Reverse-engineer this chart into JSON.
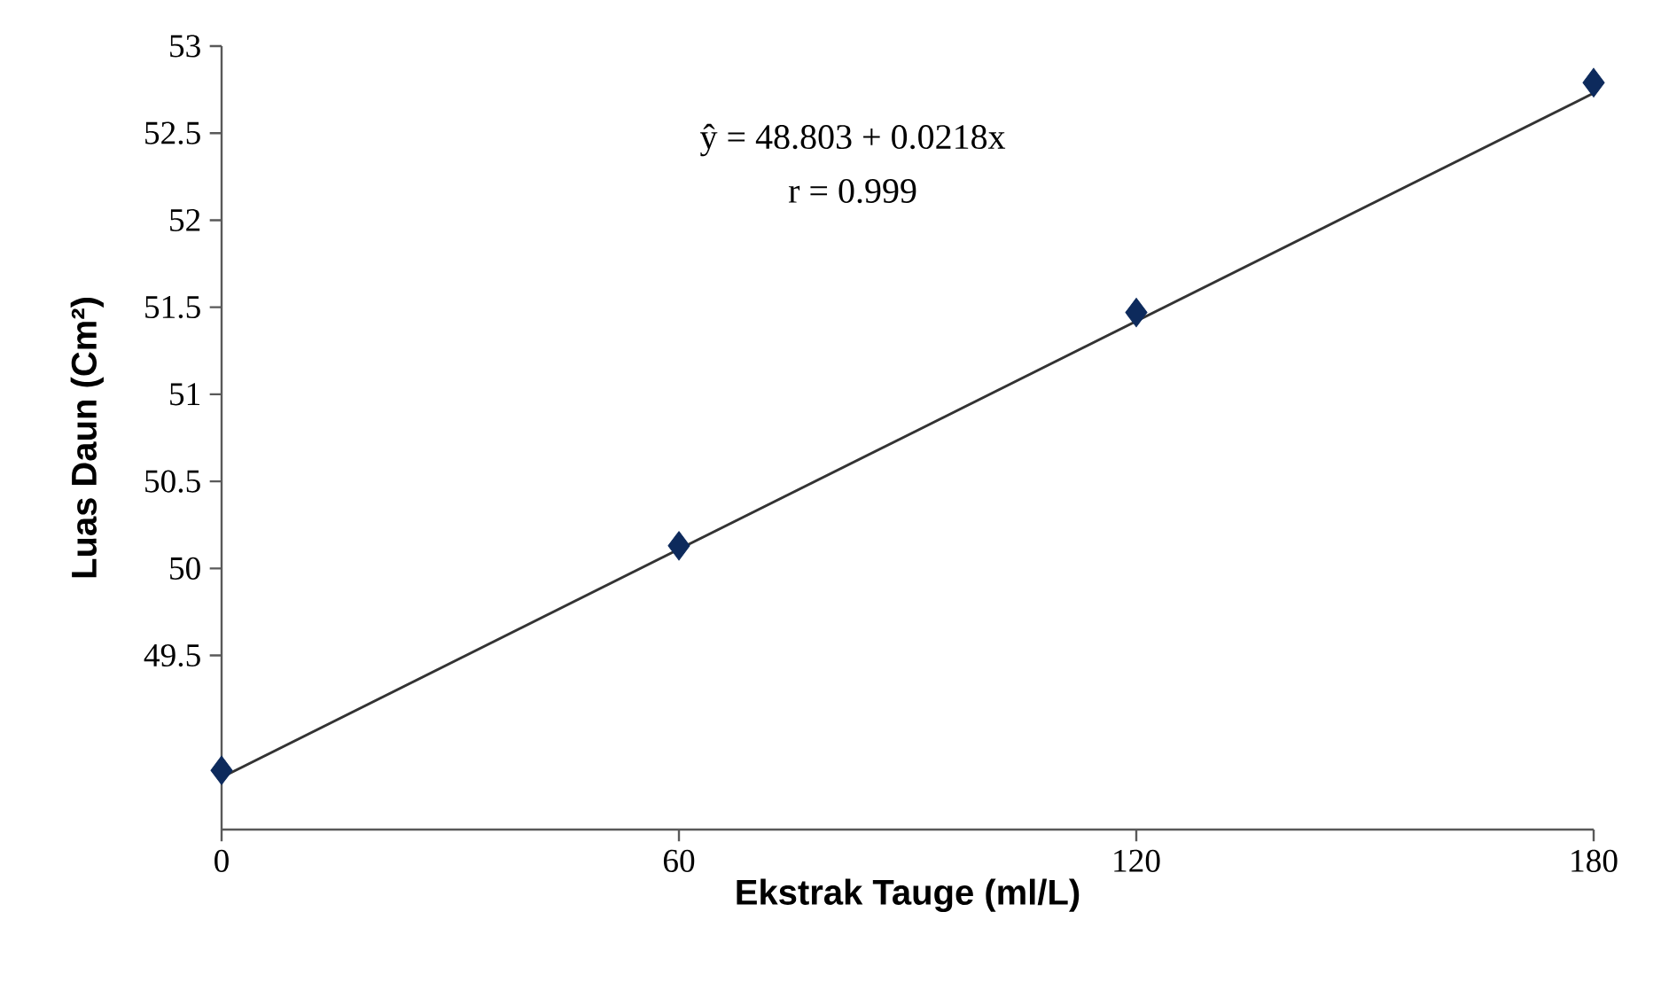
{
  "chart_data": {
    "type": "scatter",
    "xlabel": "Ekstrak Tauge (ml/L)",
    "ylabel": "Luas Daun  (Cm²)",
    "marker": "diamond",
    "xlim": [
      0,
      180
    ],
    "xticks": [
      0,
      60,
      120,
      180
    ],
    "ylim": [
      48.5,
      53
    ],
    "yticks": [
      49.5,
      50,
      50.5,
      51,
      51.5,
      52,
      52.5,
      53
    ],
    "series": [
      {
        "type": "line",
        "color": "#333333",
        "marker": "none",
        "x": [
          0,
          180
        ],
        "values": [
          48.8,
          52.73
        ]
      },
      {
        "color": "#0d2a5c",
        "x": [
          0,
          60,
          120,
          180
        ],
        "values": [
          48.84,
          50.13,
          51.47,
          52.79
        ]
      }
    ],
    "annotations": [
      "ŷ = 48.803 + 0.0218x",
      "r = 0.999"
    ]
  }
}
